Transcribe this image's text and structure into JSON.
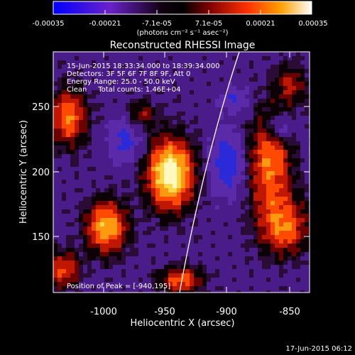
{
  "colorbar": {
    "ticks": [
      "-0.00035",
      "-0.00021",
      "-7.1e-05",
      "7.1e-05",
      "0.00021",
      "0.00035"
    ],
    "unit_label": "(photons cm⁻² s⁻¹ asec⁻²)"
  },
  "title": "Reconstructed RHESSI Image",
  "info": {
    "line1": "15-Jun-2015 18:33:34.000 to 18:39:34.000",
    "line2": "Detectors: 3F 5F 6F 7F 8F 9F, Att 0",
    "line3": "Energy Range: 25.0 - 50.0 keV",
    "line4": "Clean     Total counts: 1.46E+04"
  },
  "peak_label": "Position of Peak = [-940,195]",
  "axes": {
    "x_ticks": [
      "-1000",
      "-950",
      "-900",
      "-850"
    ],
    "y_ticks": [
      "250",
      "200",
      "150"
    ],
    "x_label": "Heliocentric X (arcsec)",
    "y_label": "Heliocentric Y (arcsec)"
  },
  "timestamp": "17-Jun-2015 06:12",
  "colors": {
    "background": "#000000",
    "limb": "#ffffff"
  }
}
